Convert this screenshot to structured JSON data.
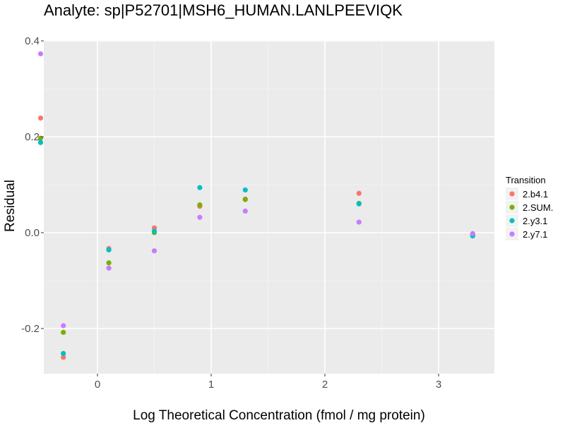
{
  "chart_data": {
    "type": "scatter",
    "title": "Analyte: sp|P52701|MSH6_HUMAN.LANLPEEVIQK",
    "xlabel": "Log Theoretical Concentration (fmol / mg protein)",
    "ylabel": "Residual",
    "xlim": [
      -0.5,
      3.5
    ],
    "ylim": [
      -0.29,
      0.4
    ],
    "xticks": [
      0,
      1,
      2,
      3
    ],
    "xtick_labels": [
      "0",
      "1",
      "2",
      "3"
    ],
    "yticks": [
      -0.2,
      0.0,
      0.2,
      0.4
    ],
    "ytick_labels": [
      "-0.2",
      "0.0",
      "0.2",
      "0.4"
    ],
    "grid": true,
    "legend": {
      "title": "Transition",
      "position": "right"
    },
    "series": [
      {
        "name": "2.b4.1",
        "color": "#F8766D",
        "x": [
          -0.5,
          -0.3,
          0.1,
          0.5,
          0.9,
          1.3,
          2.3,
          3.3
        ],
        "y": [
          0.239,
          -0.26,
          -0.033,
          0.01,
          0.055,
          0.07,
          0.082,
          -0.003
        ]
      },
      {
        "name": "2.SUM.",
        "color": "#7CAE00",
        "x": [
          -0.5,
          -0.3,
          0.1,
          0.5,
          0.9,
          1.3,
          2.3,
          3.3
        ],
        "y": [
          0.197,
          -0.208,
          -0.063,
          0.0,
          0.058,
          0.069,
          0.061,
          -0.005
        ]
      },
      {
        "name": "2.y3.1",
        "color": "#00BFC4",
        "x": [
          -0.5,
          -0.3,
          0.1,
          0.5,
          0.9,
          1.3,
          2.3,
          3.3
        ],
        "y": [
          0.188,
          -0.252,
          -0.036,
          0.003,
          0.094,
          0.089,
          0.06,
          -0.007
        ]
      },
      {
        "name": "2.y7.1",
        "color": "#C77CFF",
        "x": [
          -0.5,
          -0.3,
          0.1,
          0.5,
          0.9,
          1.3,
          2.3,
          3.3
        ],
        "y": [
          0.373,
          -0.194,
          -0.074,
          -0.038,
          0.032,
          0.045,
          0.022,
          -0.002
        ]
      }
    ]
  }
}
